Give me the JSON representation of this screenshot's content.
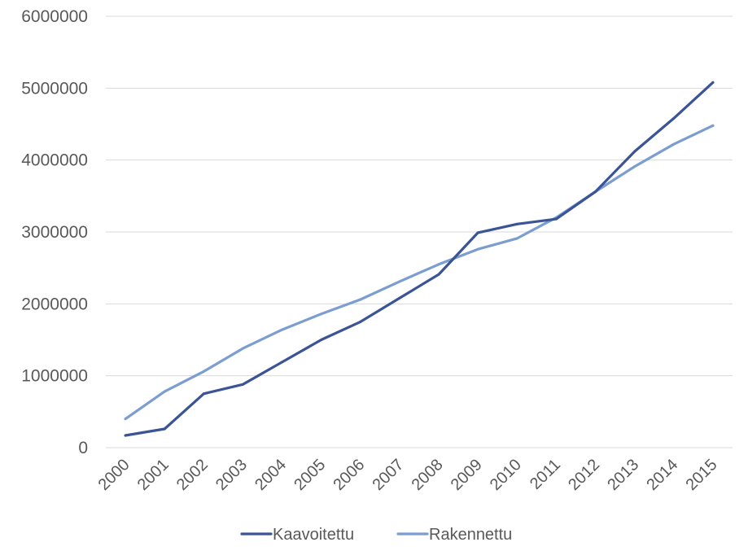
{
  "chart_data": {
    "type": "line",
    "x": [
      "2000",
      "2001",
      "2002",
      "2003",
      "2004",
      "2005",
      "2006",
      "2007",
      "2008",
      "2009",
      "2010",
      "2011",
      "2012",
      "2013",
      "2014",
      "2015"
    ],
    "series": [
      {
        "name": "Kaavoitettu",
        "color": "#3a5495",
        "values": [
          170000,
          260000,
          750000,
          880000,
          1190000,
          1500000,
          1750000,
          2080000,
          2410000,
          2990000,
          3110000,
          3180000,
          3560000,
          4120000,
          4580000,
          5080000
        ]
      },
      {
        "name": "Rakennettu",
        "color": "#7c9dd0",
        "values": [
          400000,
          780000,
          1060000,
          1380000,
          1640000,
          1860000,
          2060000,
          2310000,
          2550000,
          2760000,
          2910000,
          3200000,
          3560000,
          3910000,
          4220000,
          4480000
        ]
      }
    ],
    "yticks": [
      "0",
      "1000000",
      "2000000",
      "3000000",
      "4000000",
      "5000000",
      "6000000"
    ],
    "ylim": [
      0,
      6000000
    ],
    "grid": true,
    "legend_position": "bottom"
  }
}
